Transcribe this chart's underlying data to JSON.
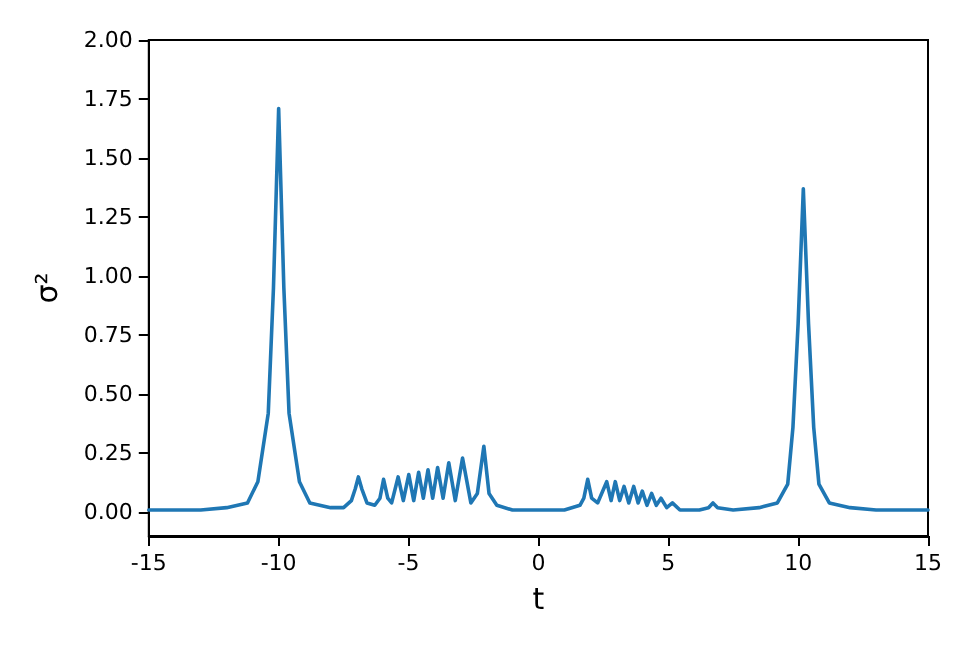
{
  "chart_data": {
    "type": "line",
    "xlabel": "t",
    "ylabel": "σ²",
    "xlim": [
      -15,
      15
    ],
    "xticks": [
      -15,
      -10,
      -5,
      0,
      5,
      10,
      15
    ],
    "ylim": [
      -0.1,
      2.0
    ],
    "yticks": [
      {
        "value": 0,
        "label": "0.00"
      },
      {
        "value": 0.25,
        "label": "0.25"
      },
      {
        "value": 0.5,
        "label": "0.50"
      },
      {
        "value": 0.75,
        "label": "0.75"
      },
      {
        "value": 1,
        "label": "1.00"
      },
      {
        "value": 1.25,
        "label": "1.25"
      },
      {
        "value": 1.5,
        "label": "1.50"
      },
      {
        "value": 1.75,
        "label": "1.75"
      },
      {
        "value": 2,
        "label": "2.00"
      }
    ],
    "grid": false,
    "marker": "none",
    "line_style": "solid",
    "x": [
      -15,
      -13,
      -12,
      -11.2,
      -10.8,
      -10.4,
      -10.2,
      -10.0,
      -9.8,
      -9.6,
      -9.2,
      -8.8,
      -8,
      -7.5,
      -7.2,
      -7.05,
      -6.93,
      -6.8,
      -6.6,
      -6.3,
      -6.1,
      -5.96,
      -5.8,
      -5.65,
      -5.4,
      -5.2,
      -4.99,
      -4.8,
      -4.61,
      -4.43,
      -4.25,
      -4.07,
      -3.88,
      -3.67,
      -3.45,
      -3.2,
      -2.92,
      -2.6,
      -2.35,
      -2.1,
      -1.9,
      -1.6,
      -1,
      0,
      1,
      1.6,
      1.75,
      1.9,
      2.05,
      2.28,
      2.63,
      2.8,
      2.96,
      3.13,
      3.3,
      3.48,
      3.67,
      3.84,
      4.0,
      4.18,
      4.36,
      4.54,
      4.72,
      4.94,
      5.16,
      5.45,
      5.76,
      6.2,
      6.55,
      6.72,
      6.9,
      7.5,
      8.5,
      9.2,
      9.6,
      9.8,
      10.0,
      10.2,
      10.4,
      10.6,
      10.8,
      11.2,
      12,
      13,
      15
    ],
    "series": [
      {
        "color": "#1f77b4",
        "values": [
          0.01,
          0.01,
          0.02,
          0.04,
          0.13,
          0.42,
          0.95,
          1.71,
          0.95,
          0.42,
          0.13,
          0.04,
          0.02,
          0.02,
          0.05,
          0.1,
          0.15,
          0.1,
          0.04,
          0.03,
          0.06,
          0.14,
          0.06,
          0.04,
          0.15,
          0.05,
          0.16,
          0.05,
          0.17,
          0.06,
          0.18,
          0.06,
          0.19,
          0.06,
          0.21,
          0.05,
          0.23,
          0.04,
          0.08,
          0.28,
          0.08,
          0.03,
          0.01,
          0.01,
          0.01,
          0.03,
          0.06,
          0.14,
          0.06,
          0.04,
          0.13,
          0.05,
          0.13,
          0.05,
          0.11,
          0.04,
          0.11,
          0.04,
          0.09,
          0.03,
          0.08,
          0.03,
          0.06,
          0.02,
          0.04,
          0.01,
          0.01,
          0.01,
          0.02,
          0.04,
          0.02,
          0.01,
          0.02,
          0.04,
          0.12,
          0.36,
          0.8,
          1.37,
          0.8,
          0.36,
          0.12,
          0.04,
          0.02,
          0.01,
          0.01
        ]
      }
    ]
  }
}
